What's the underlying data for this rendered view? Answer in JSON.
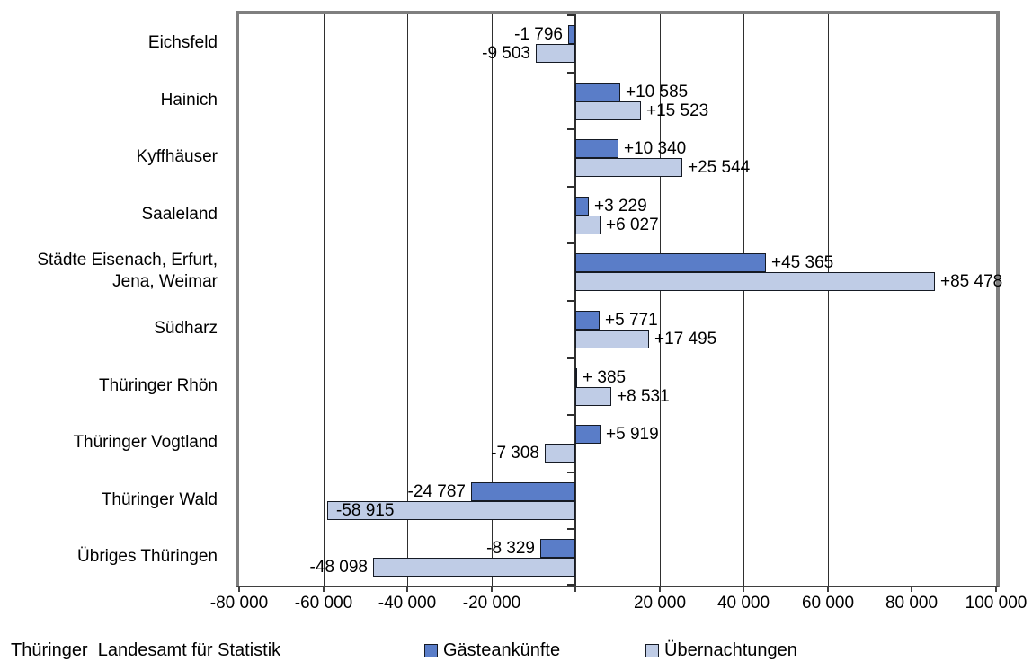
{
  "footer": {
    "source": "Thüringer  Landesamt für Statistik"
  },
  "chart_data": {
    "type": "bar",
    "orientation": "horizontal",
    "title": "",
    "xlabel": "",
    "ylabel": "",
    "grid": true,
    "legend_position": "bottom",
    "xlim": [
      -80000,
      100000
    ],
    "x_ticks": [
      {
        "value": -80000,
        "label": "-80 000"
      },
      {
        "value": -60000,
        "label": "-60 000"
      },
      {
        "value": -40000,
        "label": "-40 000"
      },
      {
        "value": -20000,
        "label": "-20 000"
      },
      {
        "value": 0,
        "label": ""
      },
      {
        "value": 20000,
        "label": "20 000"
      },
      {
        "value": 40000,
        "label": "40 000"
      },
      {
        "value": 60000,
        "label": "60 000"
      },
      {
        "value": 80000,
        "label": "80 000"
      },
      {
        "value": 100000,
        "label": "100 000"
      }
    ],
    "categories": [
      "Eichsfeld",
      "Hainich",
      "Kyffhäuser",
      "Saaleland",
      "Städte Eisenach, Erfurt,\nJena, Weimar",
      "Südharz",
      "Thüringer Rhön",
      "Thüringer Vogtland",
      "Thüringer Wald",
      "Übriges Thüringen"
    ],
    "series": [
      {
        "name": "Gästeankünfte",
        "color": "#5a7dc8",
        "values": [
          -1796,
          10585,
          10340,
          3229,
          45365,
          5771,
          385,
          5919,
          -24787,
          -8329
        ],
        "labels": [
          "-1 796",
          "+10 585",
          "+10 340",
          "+3 229",
          "+45 365",
          "+5 771",
          "+ 385",
          "+5 919",
          "-24 787",
          "-8 329"
        ],
        "inside_labels": []
      },
      {
        "name": "Übernachtungen",
        "color": "#bfcce6",
        "values": [
          -9503,
          15523,
          25544,
          6027,
          85478,
          17495,
          8531,
          -7308,
          -58915,
          -48098
        ],
        "labels": [
          "-9 503",
          "+15 523",
          "+25 544",
          "+6 027",
          "+85 478",
          "+17 495",
          "+8 531",
          "-7 308",
          "-58 915",
          "-48 098"
        ],
        "inside_labels": [
          8
        ]
      }
    ],
    "colors": {
      "plot_border": "#7f7f7f",
      "grid": "#2f2f2f",
      "axis": "#3f3f3f",
      "bar_border": "#151a24"
    }
  }
}
